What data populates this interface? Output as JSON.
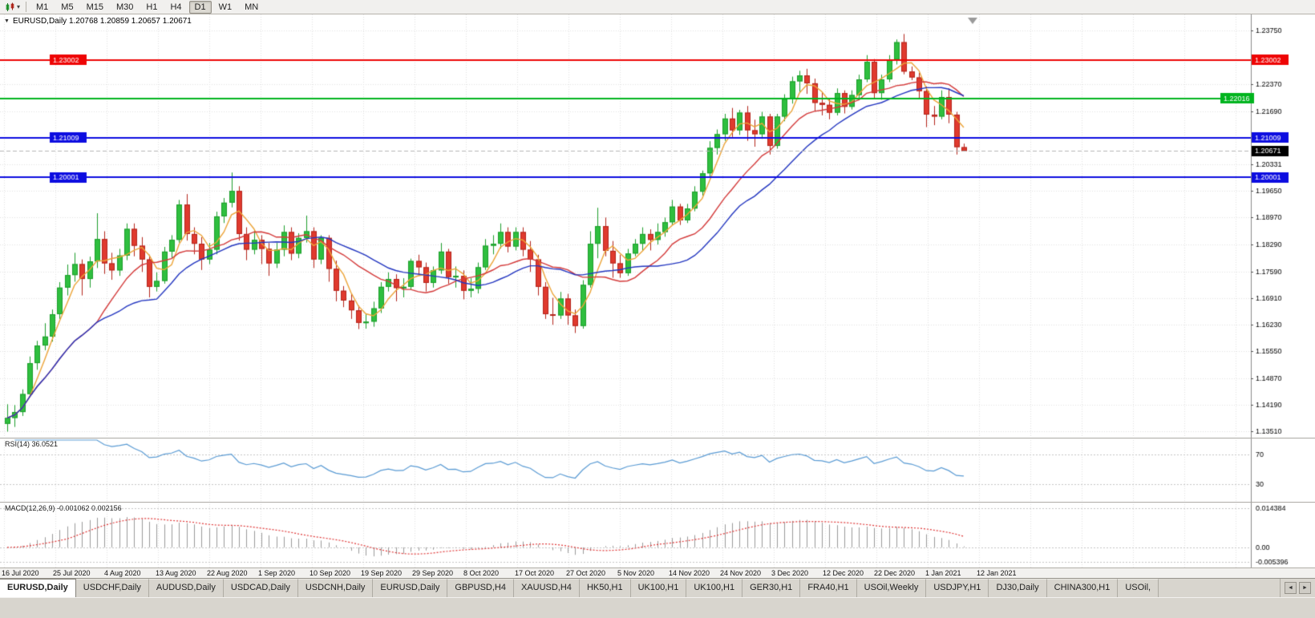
{
  "toolbar": {
    "timeframes": [
      "M1",
      "M5",
      "M15",
      "M30",
      "H1",
      "H4",
      "D1",
      "W1",
      "MN"
    ],
    "active_timeframe": "D1"
  },
  "chart": {
    "symbol": "EURUSD,Daily",
    "title_text": "EURUSD,Daily 1.20768 1.20859 1.20657 1.20671",
    "ohlc": {
      "open": "1.20768",
      "high": "1.20859",
      "low": "1.20657",
      "close": "1.20671"
    },
    "price_axis": {
      "ymax": 1.2375,
      "ymin": 1.1351,
      "labels": [
        {
          "t": "1.23750",
          "v": 1.2375
        },
        {
          "t": "1.22370",
          "v": 1.2237
        },
        {
          "t": "1.21690",
          "v": 1.2169
        },
        {
          "t": "1.20331",
          "v": 1.20331
        },
        {
          "t": "1.19650",
          "v": 1.1965
        },
        {
          "t": "1.18970",
          "v": 1.1897
        },
        {
          "t": "1.18290",
          "v": 1.1829
        },
        {
          "t": "1.17590",
          "v": 1.1759
        },
        {
          "t": "1.16910",
          "v": 1.1691
        },
        {
          "t": "1.16230",
          "v": 1.1623
        },
        {
          "t": "1.15550",
          "v": 1.1555
        },
        {
          "t": "1.14870",
          "v": 1.1487
        },
        {
          "t": "1.14190",
          "v": 1.1419
        },
        {
          "t": "1.13510",
          "v": 1.1351
        }
      ]
    },
    "hlines": [
      {
        "value": 1.23002,
        "label": "1.23002",
        "color": "#ee0505",
        "left_label": true,
        "axis_side": "right"
      },
      {
        "value": 1.22016,
        "label": "1.22016",
        "color": "#00b41e",
        "left_label": false,
        "axis_side": "inside"
      },
      {
        "value": 1.21009,
        "label": "1.21009",
        "color": "#0d0de0",
        "left_label": true,
        "axis_side": "right"
      },
      {
        "value": 1.20001,
        "label": "1.20001",
        "color": "#0d0de0",
        "left_label": true,
        "axis_side": "right"
      }
    ],
    "current_price": {
      "value": 1.20671,
      "label": "1.20671",
      "box_color": "#000000"
    }
  },
  "chart_data": {
    "type": "candlestick",
    "title": "EURUSD Daily",
    "x_dates": [
      "16 Jul 2020",
      "25 Jul 2020",
      "4 Aug 2020",
      "13 Aug 2020",
      "22 Aug 2020",
      "1 Sep 2020",
      "10 Sep 2020",
      "19 Sep 2020",
      "29 Sep 2020",
      "8 Oct 2020",
      "17 Oct 2020",
      "27 Oct 2020",
      "5 Nov 2020",
      "14 Nov 2020",
      "24 Nov 2020",
      "3 Dec 2020",
      "12 Dec 2020",
      "22 Dec 2020",
      "1 Jan 2021",
      "12 Jan 2021"
    ],
    "ylim": [
      1.1351,
      1.2375
    ],
    "levels": [
      1.23002,
      1.22016,
      1.21009,
      1.20001
    ],
    "last_bid": 1.20671,
    "moving_averages": [
      {
        "name": "fast-ma",
        "period": 4,
        "color": "#eca438"
      },
      {
        "name": "mid-ma",
        "period": 13,
        "color": "#d43a3a"
      },
      {
        "name": "slow-ma",
        "period": 21,
        "color": "#2336c0"
      }
    ],
    "candles": [
      [
        1.137,
        1.142,
        1.135,
        1.1385
      ],
      [
        1.1385,
        1.1418,
        1.1362,
        1.14
      ],
      [
        1.14,
        1.1458,
        1.139,
        1.1446
      ],
      [
        1.1446,
        1.1542,
        1.1438,
        1.1525
      ],
      [
        1.1525,
        1.1582,
        1.1508,
        1.157
      ],
      [
        1.157,
        1.1627,
        1.1558,
        1.1593
      ],
      [
        1.1593,
        1.1662,
        1.158,
        1.165
      ],
      [
        1.165,
        1.1732,
        1.1638,
        1.1718
      ],
      [
        1.1718,
        1.1777,
        1.1698,
        1.175
      ],
      [
        1.175,
        1.1807,
        1.1733,
        1.1778
      ],
      [
        1.1778,
        1.179,
        1.1698,
        1.174
      ],
      [
        1.174,
        1.1797,
        1.1718,
        1.1785
      ],
      [
        1.1785,
        1.1908,
        1.1768,
        1.1842
      ],
      [
        1.1842,
        1.1862,
        1.1753,
        1.178
      ],
      [
        1.178,
        1.1807,
        1.1738,
        1.1762
      ],
      [
        1.1762,
        1.1817,
        1.1748,
        1.18
      ],
      [
        1.18,
        1.1882,
        1.1788,
        1.1868
      ],
      [
        1.1868,
        1.1882,
        1.1798,
        1.1825
      ],
      [
        1.1825,
        1.1847,
        1.1758,
        1.179
      ],
      [
        1.179,
        1.1802,
        1.1693,
        1.172
      ],
      [
        1.172,
        1.1757,
        1.1708,
        1.1735
      ],
      [
        1.1735,
        1.1822,
        1.1728,
        1.181
      ],
      [
        1.181,
        1.1852,
        1.1793,
        1.184
      ],
      [
        1.184,
        1.1942,
        1.1833,
        1.193
      ],
      [
        1.193,
        1.1957,
        1.1838,
        1.1855
      ],
      [
        1.1855,
        1.1872,
        1.1803,
        1.183
      ],
      [
        1.183,
        1.1847,
        1.1763,
        1.179
      ],
      [
        1.179,
        1.1832,
        1.1778,
        1.1815
      ],
      [
        1.1815,
        1.1912,
        1.1803,
        1.19
      ],
      [
        1.19,
        1.1947,
        1.1883,
        1.1935
      ],
      [
        1.1935,
        1.2012,
        1.1923,
        1.1965
      ],
      [
        1.1965,
        1.1977,
        1.1838,
        1.1855
      ],
      [
        1.1855,
        1.1872,
        1.1788,
        1.1815
      ],
      [
        1.1815,
        1.1867,
        1.1803,
        1.184
      ],
      [
        1.184,
        1.1852,
        1.1778,
        1.1817
      ],
      [
        1.1817,
        1.1832,
        1.1748,
        1.178
      ],
      [
        1.178,
        1.1832,
        1.1768,
        1.1815
      ],
      [
        1.1815,
        1.1877,
        1.1798,
        1.186
      ],
      [
        1.186,
        1.1872,
        1.1788,
        1.1805
      ],
      [
        1.1805,
        1.1857,
        1.1793,
        1.1845
      ],
      [
        1.1845,
        1.1902,
        1.1833,
        1.1862
      ],
      [
        1.1862,
        1.1872,
        1.1768,
        1.179
      ],
      [
        1.179,
        1.1852,
        1.1778,
        1.1845
      ],
      [
        1.1845,
        1.1852,
        1.1733,
        1.1766
      ],
      [
        1.1766,
        1.1787,
        1.1683,
        1.171
      ],
      [
        1.171,
        1.1722,
        1.1668,
        1.1685
      ],
      [
        1.1685,
        1.1702,
        1.1638,
        1.166
      ],
      [
        1.166,
        1.1672,
        1.1612,
        1.1628
      ],
      [
        1.1628,
        1.1652,
        1.1613,
        1.1631
      ],
      [
        1.1631,
        1.1682,
        1.1618,
        1.1665
      ],
      [
        1.1665,
        1.1732,
        1.1653,
        1.172
      ],
      [
        1.172,
        1.1757,
        1.1708,
        1.174
      ],
      [
        1.174,
        1.1752,
        1.1683,
        1.1717
      ],
      [
        1.1717,
        1.1742,
        1.1693,
        1.172
      ],
      [
        1.172,
        1.1792,
        1.1713,
        1.1786
      ],
      [
        1.1786,
        1.1802,
        1.1748,
        1.177
      ],
      [
        1.177,
        1.1782,
        1.1708,
        1.173
      ],
      [
        1.173,
        1.1772,
        1.1718,
        1.1762
      ],
      [
        1.1762,
        1.1832,
        1.1753,
        1.181
      ],
      [
        1.181,
        1.1817,
        1.1728,
        1.1745
      ],
      [
        1.1745,
        1.1772,
        1.1718,
        1.1748
      ],
      [
        1.1748,
        1.1762,
        1.1688,
        1.171
      ],
      [
        1.171,
        1.1742,
        1.1693,
        1.1715
      ],
      [
        1.1715,
        1.1782,
        1.1703,
        1.177
      ],
      [
        1.177,
        1.1842,
        1.1763,
        1.1825
      ],
      [
        1.1825,
        1.1852,
        1.1803,
        1.183
      ],
      [
        1.183,
        1.1882,
        1.1818,
        1.186
      ],
      [
        1.186,
        1.1872,
        1.1808,
        1.1823
      ],
      [
        1.1823,
        1.1872,
        1.1813,
        1.186
      ],
      [
        1.186,
        1.1872,
        1.1798,
        1.1815
      ],
      [
        1.1815,
        1.1837,
        1.1758,
        1.179
      ],
      [
        1.179,
        1.1802,
        1.1698,
        1.172
      ],
      [
        1.172,
        1.1732,
        1.1638,
        1.165
      ],
      [
        1.165,
        1.1692,
        1.1623,
        1.1647
      ],
      [
        1.1647,
        1.1707,
        1.1638,
        1.169
      ],
      [
        1.169,
        1.1702,
        1.1623,
        1.1647
      ],
      [
        1.1647,
        1.1662,
        1.1602,
        1.162
      ],
      [
        1.162,
        1.1737,
        1.1613,
        1.1725
      ],
      [
        1.1725,
        1.1862,
        1.1718,
        1.183
      ],
      [
        1.183,
        1.1922,
        1.1793,
        1.1875
      ],
      [
        1.1875,
        1.1897,
        1.1798,
        1.1812
      ],
      [
        1.1812,
        1.1837,
        1.1743,
        1.178
      ],
      [
        1.178,
        1.1802,
        1.1743,
        1.1755
      ],
      [
        1.1755,
        1.1817,
        1.1748,
        1.1805
      ],
      [
        1.1805,
        1.1842,
        1.1798,
        1.183
      ],
      [
        1.183,
        1.1872,
        1.1813,
        1.1855
      ],
      [
        1.1855,
        1.1867,
        1.1813,
        1.184
      ],
      [
        1.184,
        1.1882,
        1.1828,
        1.186
      ],
      [
        1.186,
        1.1897,
        1.1848,
        1.1885
      ],
      [
        1.1885,
        1.1942,
        1.1878,
        1.1925
      ],
      [
        1.1925,
        1.1932,
        1.1878,
        1.189
      ],
      [
        1.189,
        1.1932,
        1.1883,
        1.192
      ],
      [
        1.192,
        1.1977,
        1.1913,
        1.1963
      ],
      [
        1.1963,
        1.2017,
        1.1953,
        1.201
      ],
      [
        1.201,
        1.2092,
        1.1998,
        1.2075
      ],
      [
        1.2075,
        1.2122,
        1.2058,
        1.211
      ],
      [
        1.211,
        1.2162,
        1.2093,
        1.215
      ],
      [
        1.215,
        1.2177,
        1.2103,
        1.212
      ],
      [
        1.212,
        1.2172,
        1.2108,
        1.2165
      ],
      [
        1.2165,
        1.2182,
        1.2093,
        1.212
      ],
      [
        1.212,
        1.2147,
        1.2078,
        1.211
      ],
      [
        1.211,
        1.2167,
        1.2098,
        1.2155
      ],
      [
        1.2155,
        1.2162,
        1.2058,
        1.208
      ],
      [
        1.208,
        1.2162,
        1.2073,
        1.2155
      ],
      [
        1.2155,
        1.2212,
        1.2143,
        1.22
      ],
      [
        1.22,
        1.2257,
        1.2188,
        1.2245
      ],
      [
        1.2245,
        1.2272,
        1.2218,
        1.226
      ],
      [
        1.226,
        1.2277,
        1.2213,
        1.224
      ],
      [
        1.224,
        1.2252,
        1.2168,
        1.219
      ],
      [
        1.219,
        1.2217,
        1.2158,
        1.2185
      ],
      [
        1.2185,
        1.2202,
        1.2148,
        1.2165
      ],
      [
        1.2165,
        1.2227,
        1.2158,
        1.2215
      ],
      [
        1.2215,
        1.2222,
        1.2163,
        1.218
      ],
      [
        1.218,
        1.2222,
        1.2173,
        1.221
      ],
      [
        1.221,
        1.2262,
        1.2203,
        1.225
      ],
      [
        1.225,
        1.2312,
        1.2243,
        1.2295
      ],
      [
        1.2295,
        1.2302,
        1.2203,
        1.2215
      ],
      [
        1.2215,
        1.2262,
        1.2198,
        1.225
      ],
      [
        1.225,
        1.2312,
        1.2243,
        1.23
      ],
      [
        1.23,
        1.2352,
        1.2288,
        1.2345
      ],
      [
        1.2345,
        1.2366,
        1.2263,
        1.227
      ],
      [
        1.227,
        1.2283,
        1.2248,
        1.2255
      ],
      [
        1.2255,
        1.2267,
        1.2203,
        1.222
      ],
      [
        1.222,
        1.2232,
        1.2128,
        1.216
      ],
      [
        1.216,
        1.2182,
        1.2133,
        1.2155
      ],
      [
        1.2155,
        1.2222,
        1.2148,
        1.2205
      ],
      [
        1.2205,
        1.2227,
        1.2138,
        1.216
      ],
      [
        1.216,
        1.2167,
        1.2058,
        1.2077
      ],
      [
        1.20768,
        1.20859,
        1.20657,
        1.20671
      ]
    ]
  },
  "rsi": {
    "label": "RSI(14) 36.0521",
    "period": 14,
    "value": 36.0521,
    "color": "#5a9bd4",
    "levels": [
      {
        "t": "70",
        "v": 70
      },
      {
        "t": "30",
        "v": 30
      }
    ]
  },
  "macd": {
    "label": "MACD(12,26,9) -0.001062 0.002156",
    "fast": 12,
    "slow": 26,
    "signal": 9,
    "main_value": -0.001062,
    "signal_value": 0.002156,
    "histogram_color": "#9a9a9a",
    "signal_color": "#e03636",
    "axis_labels": [
      {
        "t": "0.014384",
        "v": 0.014384
      },
      {
        "t": "0.00",
        "v": 0
      },
      {
        "t": "-0.005396",
        "v": -0.005396
      }
    ]
  },
  "tabs": {
    "active_index": 0,
    "items": [
      "EURUSD,Daily",
      "USDCHF,Daily",
      "AUDUSD,Daily",
      "USDCAD,Daily",
      "USDCNH,Daily",
      "EURUSD,Daily",
      "GBPUSD,H4",
      "XAUUSD,H4",
      "HK50,H1",
      "UK100,H1",
      "UK100,H1",
      "GER30,H1",
      "FRA40,H1",
      "USOil,Weekly",
      "USDJPY,H1",
      "DJ30,Daily",
      "CHINA300,H1",
      "USOil,"
    ],
    "scroll_left_glyph": "◄",
    "scroll_right_glyph": "►"
  }
}
